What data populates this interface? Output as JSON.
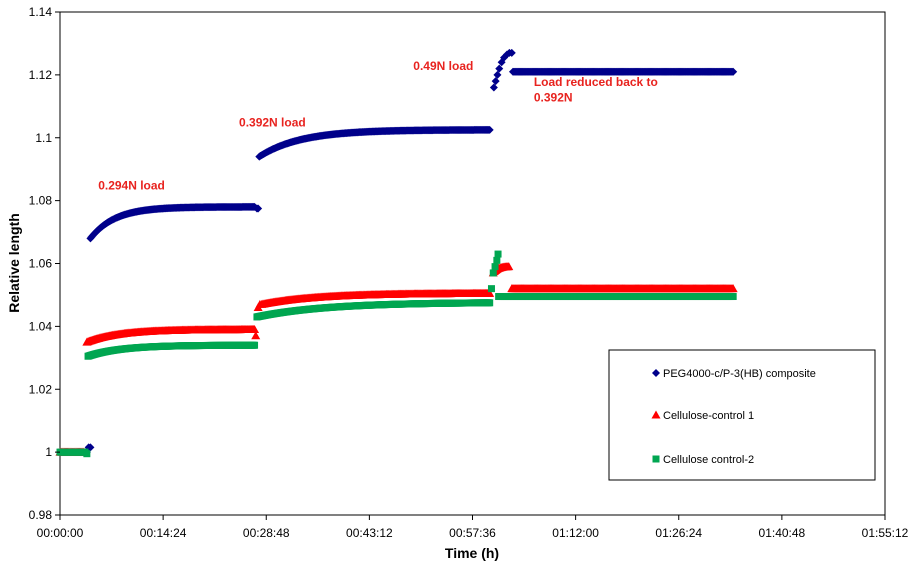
{
  "chart_data": {
    "type": "scatter",
    "xlabel": "Time (h)",
    "ylabel": "Relative length",
    "x_unit": "seconds",
    "xlim": [
      0,
      6912
    ],
    "ylim": [
      0.98,
      1.14
    ],
    "x_ticks": [
      {
        "value": 0,
        "label": "00:00:00"
      },
      {
        "value": 864,
        "label": "00:14:24"
      },
      {
        "value": 1728,
        "label": "00:28:48"
      },
      {
        "value": 2592,
        "label": "00:43:12"
      },
      {
        "value": 3456,
        "label": "00:57:36"
      },
      {
        "value": 4320,
        "label": "01:12:00"
      },
      {
        "value": 5184,
        "label": "01:26:24"
      },
      {
        "value": 6048,
        "label": "01:40:48"
      },
      {
        "value": 6912,
        "label": "01:55:12"
      }
    ],
    "y_ticks": [
      {
        "value": 0.98,
        "label": "0.98"
      },
      {
        "value": 1.0,
        "label": "1"
      },
      {
        "value": 1.02,
        "label": "1.02"
      },
      {
        "value": 1.04,
        "label": "1.04"
      },
      {
        "value": 1.06,
        "label": "1.06"
      },
      {
        "value": 1.08,
        "label": "1.08"
      },
      {
        "value": 1.1,
        "label": "1.1"
      },
      {
        "value": 1.12,
        "label": "1.12"
      },
      {
        "value": 1.14,
        "label": "1.14"
      }
    ],
    "grid": false,
    "legend_position": "bottom-right",
    "series": [
      {
        "name": "PEG4000-c/P-3(HB) composite",
        "color": "#00008B",
        "marker": "diamond",
        "segments": [
          {
            "type": "flat",
            "x0": 0,
            "x1": 200,
            "y": 1.0
          },
          {
            "type": "points",
            "points": [
              [
                225,
                1.0
              ],
              [
                240,
                1.0015
              ],
              [
                255,
                1.0015
              ]
            ]
          },
          {
            "type": "creep",
            "x0": 255,
            "x1": 1630,
            "ystart": 1.068,
            "yend": 1.078,
            "tau": 0.15
          },
          {
            "type": "points",
            "points": [
              [
                1650,
                1.0775
              ],
              [
                1660,
                1.0775
              ]
            ]
          },
          {
            "type": "creep",
            "x0": 1670,
            "x1": 3600,
            "ystart": 1.094,
            "yend": 1.1025,
            "tau": 0.18
          },
          {
            "type": "points",
            "points": [
              [
                3635,
                1.116
              ],
              [
                3650,
                1.118
              ],
              [
                3665,
                1.12
              ],
              [
                3680,
                1.122
              ],
              [
                3700,
                1.124
              ],
              [
                3720,
                1.1255
              ],
              [
                3745,
                1.1265
              ],
              [
                3765,
                1.127
              ],
              [
                3785,
                1.127
              ]
            ]
          },
          {
            "type": "flat",
            "x0": 3795,
            "x1": 5640,
            "y": 1.121
          }
        ]
      },
      {
        "name": "Cellulose-control 1",
        "color": "#FF0000",
        "marker": "triangle",
        "segments": [
          {
            "type": "flat",
            "x0": 0,
            "x1": 200,
            "y": 1.0
          },
          {
            "type": "creep",
            "x0": 225,
            "x1": 1630,
            "ystart": 1.035,
            "yend": 1.039,
            "tau": 0.2
          },
          {
            "type": "points",
            "points": [
              [
                1640,
                1.037
              ],
              [
                1660,
                1.046
              ],
              [
                1675,
                1.047
              ]
            ]
          },
          {
            "type": "creep",
            "x0": 1690,
            "x1": 3600,
            "ystart": 1.047,
            "yend": 1.0505,
            "tau": 0.25
          },
          {
            "type": "creep",
            "x0": 3630,
            "x1": 3760,
            "ystart": 1.057,
            "yend": 1.059,
            "tau": 0.3
          },
          {
            "type": "flat",
            "x0": 3785,
            "x1": 5640,
            "y": 1.052
          }
        ]
      },
      {
        "name": "Cellulose control-2",
        "color": "#00A651",
        "marker": "square",
        "segments": [
          {
            "type": "flat",
            "x0": 0,
            "x1": 210,
            "y": 1.0
          },
          {
            "type": "points",
            "points": [
              [
                225,
                0.9995
              ]
            ]
          },
          {
            "type": "creep",
            "x0": 235,
            "x1": 1630,
            "ystart": 1.0305,
            "yend": 1.034,
            "tau": 0.2
          },
          {
            "type": "creep",
            "x0": 1650,
            "x1": 3600,
            "ystart": 1.043,
            "yend": 1.0475,
            "tau": 0.3
          },
          {
            "type": "points",
            "points": [
              [
                3615,
                1.052
              ],
              [
                3630,
                1.057
              ],
              [
                3645,
                1.059
              ],
              [
                3660,
                1.061
              ],
              [
                3670,
                1.063
              ]
            ]
          },
          {
            "type": "flat",
            "x0": 3675,
            "x1": 5640,
            "y": 1.0495
          }
        ]
      }
    ],
    "annotations": [
      {
        "text": "0.294N load",
        "x": 320,
        "y": 1.0835,
        "color": "#E8231F"
      },
      {
        "text": "0.392N load",
        "x": 1500,
        "y": 1.1035,
        "color": "#E8231F"
      },
      {
        "text": "0.49N load",
        "x": 2960,
        "y": 1.1215,
        "color": "#E8231F"
      },
      {
        "text": "Load reduced back to",
        "x": 3970,
        "y": 1.1165,
        "color": "#E8231F"
      },
      {
        "text": "0.392N",
        "x": 3970,
        "y": 1.1115,
        "color": "#E8231F"
      }
    ]
  }
}
